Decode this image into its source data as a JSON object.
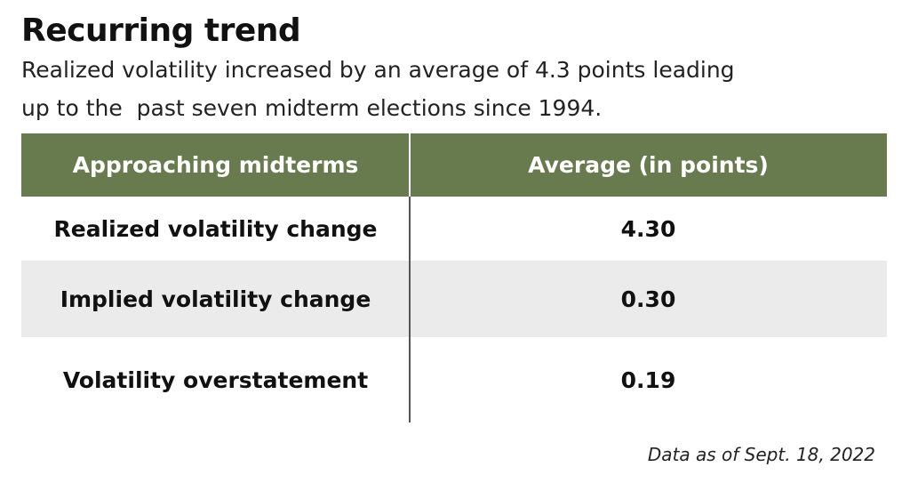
{
  "header": {
    "title": "Recurring trend",
    "subtitle": [
      "Realized volatility increased by an average of 4.3 points leading",
      "up to the  past seven midterm elections since 1994."
    ]
  },
  "table": {
    "columns": [
      "Approaching midterms",
      "Average (in points)"
    ],
    "rows": [
      [
        "Realized volatility change",
        "4.30"
      ],
      [
        "Implied volatility change",
        "0.30"
      ],
      [
        "Volatility overstatement",
        "0.19"
      ]
    ]
  },
  "footnote": "Data as of Sept. 18, 2022"
}
